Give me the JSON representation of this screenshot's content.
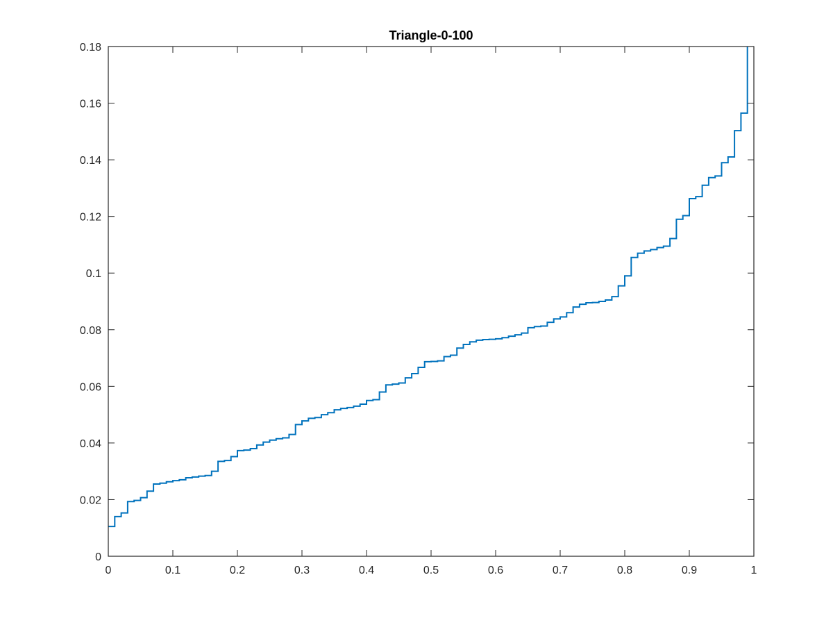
{
  "chart_data": {
    "type": "line",
    "title": "Triangle-0-100",
    "xlabel": "",
    "ylabel": "",
    "xlim": [
      0,
      1
    ],
    "ylim": [
      0,
      0.18
    ],
    "xticks": [
      0,
      0.1,
      0.2,
      0.3,
      0.4,
      0.5,
      0.6,
      0.7,
      0.8,
      0.9,
      1
    ],
    "xtick_labels": [
      "0",
      "0.1",
      "0.2",
      "0.3",
      "0.4",
      "0.5",
      "0.6",
      "0.7",
      "0.8",
      "0.9",
      "1"
    ],
    "yticks": [
      0,
      0.02,
      0.04,
      0.06,
      0.08,
      0.1,
      0.12,
      0.14,
      0.16,
      0.18
    ],
    "ytick_labels": [
      "0",
      "0.02",
      "0.04",
      "0.06",
      "0.08",
      "0.1",
      "0.12",
      "0.14",
      "0.16",
      "0.18"
    ],
    "grid": false,
    "box": true,
    "line_color": "#0072BD",
    "step": true,
    "series": [
      {
        "x": [
          0,
          0.01,
          0.02,
          0.03,
          0.04,
          0.05,
          0.06,
          0.07,
          0.08,
          0.09,
          0.1,
          0.11,
          0.12,
          0.13,
          0.14,
          0.15,
          0.16,
          0.17,
          0.18,
          0.19,
          0.2,
          0.21,
          0.22,
          0.23,
          0.24,
          0.25,
          0.26,
          0.27,
          0.28,
          0.29,
          0.3,
          0.31,
          0.32,
          0.33,
          0.34,
          0.35,
          0.36,
          0.37,
          0.38,
          0.39,
          0.4,
          0.41,
          0.42,
          0.43,
          0.44,
          0.45,
          0.46,
          0.47,
          0.48,
          0.49,
          0.5,
          0.51,
          0.52,
          0.53,
          0.54,
          0.55,
          0.56,
          0.57,
          0.58,
          0.59,
          0.6,
          0.61,
          0.62,
          0.63,
          0.64,
          0.65,
          0.66,
          0.67,
          0.68,
          0.69,
          0.7,
          0.71,
          0.72,
          0.73,
          0.74,
          0.75,
          0.76,
          0.77,
          0.78,
          0.79,
          0.8,
          0.81,
          0.82,
          0.83,
          0.84,
          0.85,
          0.86,
          0.87,
          0.88,
          0.89,
          0.9,
          0.91,
          0.92,
          0.93,
          0.94,
          0.95,
          0.96,
          0.97,
          0.98,
          0.99
        ],
        "y": [
          0.0105,
          0.014,
          0.0153,
          0.0193,
          0.0197,
          0.0207,
          0.023,
          0.0255,
          0.0258,
          0.0263,
          0.0267,
          0.027,
          0.0277,
          0.028,
          0.0283,
          0.0285,
          0.03,
          0.0335,
          0.0338,
          0.0352,
          0.0373,
          0.0375,
          0.038,
          0.0393,
          0.0403,
          0.041,
          0.0415,
          0.0418,
          0.043,
          0.0465,
          0.0478,
          0.0487,
          0.049,
          0.05,
          0.0507,
          0.0517,
          0.0522,
          0.0525,
          0.053,
          0.0537,
          0.055,
          0.0553,
          0.058,
          0.0605,
          0.0608,
          0.0612,
          0.063,
          0.0645,
          0.0667,
          0.0687,
          0.0688,
          0.069,
          0.0705,
          0.071,
          0.0735,
          0.0748,
          0.0757,
          0.0763,
          0.0765,
          0.0766,
          0.0768,
          0.0772,
          0.0777,
          0.0782,
          0.0788,
          0.0807,
          0.0811,
          0.0813,
          0.0826,
          0.0838,
          0.0845,
          0.086,
          0.088,
          0.089,
          0.0895,
          0.0896,
          0.09,
          0.0905,
          0.0917,
          0.0955,
          0.099,
          0.1055,
          0.107,
          0.1078,
          0.1083,
          0.109,
          0.1095,
          0.1122,
          0.119,
          0.1203,
          0.1263,
          0.127,
          0.131,
          0.1337,
          0.1343,
          0.139,
          0.141,
          0.1503,
          0.1565,
          0.18
        ]
      }
    ]
  }
}
